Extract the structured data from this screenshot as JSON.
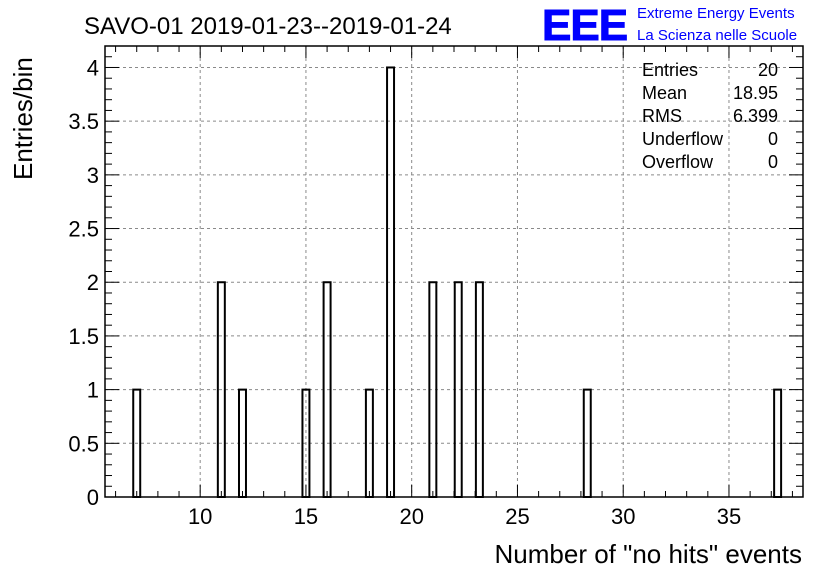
{
  "header": {
    "title": "SAVO-01 2019-01-23--2019-01-24",
    "logo_text": "EEE",
    "logo_line1": "Extreme Energy Events",
    "logo_line2": "La Scienza nelle Scuole",
    "logo_color": "#0000ff"
  },
  "stats": {
    "rows": [
      {
        "label": "Entries",
        "value": "20"
      },
      {
        "label": "Mean",
        "value": "18.95"
      },
      {
        "label": "RMS",
        "value": "6.399"
      },
      {
        "label": "Underflow",
        "value": "0"
      },
      {
        "label": "Overflow",
        "value": "0"
      }
    ]
  },
  "chart_data": {
    "type": "bar",
    "title": "SAVO-01 2019-01-23--2019-01-24",
    "xlabel": "Number of \"no hits\" events",
    "ylabel": "Entries/bin",
    "xlim": [
      5.5,
      38.5
    ],
    "ylim": [
      0,
      4.2
    ],
    "x_ticks": [
      10,
      15,
      20,
      25,
      30,
      35
    ],
    "y_ticks": [
      0,
      0.5,
      1,
      1.5,
      2,
      2.5,
      3,
      3.5,
      4
    ],
    "y_tick_labels": [
      "0",
      "0.5",
      "1",
      "1.5",
      "2",
      "2.5",
      "3",
      "3.5",
      "4"
    ],
    "bin_width": 0.33,
    "bins": [
      {
        "x": 7,
        "count": 1
      },
      {
        "x": 11,
        "count": 2
      },
      {
        "x": 12,
        "count": 1
      },
      {
        "x": 15,
        "count": 1
      },
      {
        "x": 16,
        "count": 2
      },
      {
        "x": 18,
        "count": 1
      },
      {
        "x": 19,
        "count": 4
      },
      {
        "x": 21,
        "count": 2
      },
      {
        "x": 22.2,
        "count": 2
      },
      {
        "x": 23.2,
        "count": 2
      },
      {
        "x": 28.3,
        "count": 1
      },
      {
        "x": 37.3,
        "count": 1
      }
    ],
    "grid": true,
    "line_color": "#000000"
  }
}
